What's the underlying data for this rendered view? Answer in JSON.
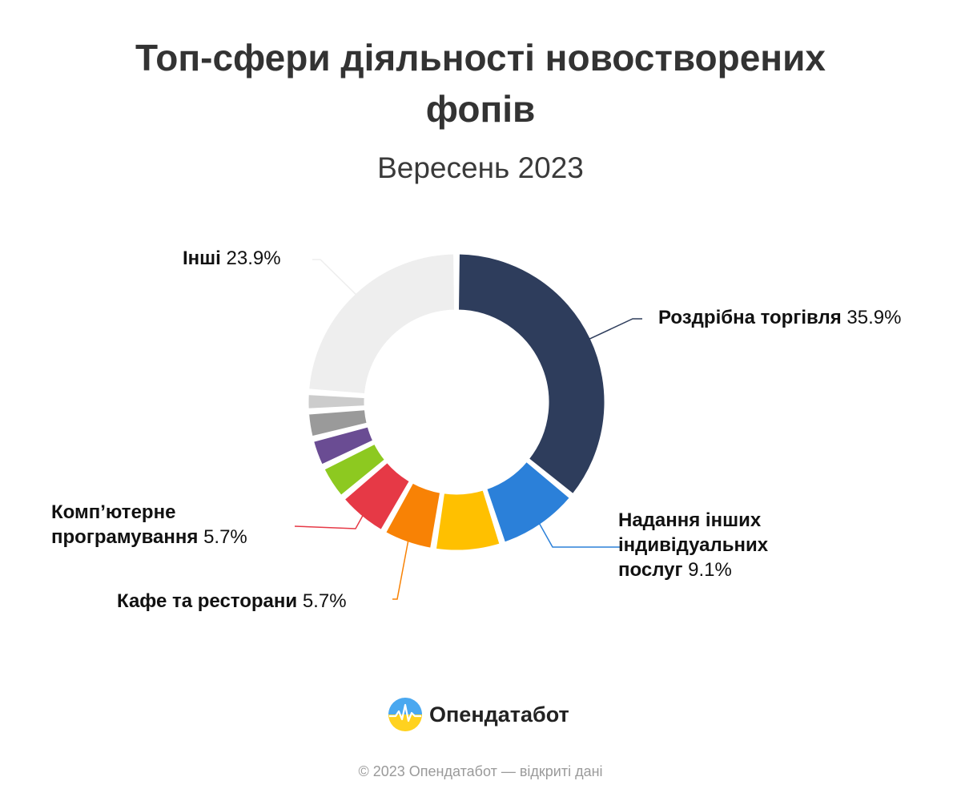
{
  "header": {
    "title": "Топ-сфери діяльності новостворених фопів",
    "subtitle": "Вересень 2023"
  },
  "chart_data": {
    "type": "pie",
    "donut": true,
    "slices": [
      {
        "name": "Роздрібна торгівля",
        "value": 35.9,
        "pct_label": "35.9%",
        "color": "#2e3d5c"
      },
      {
        "name": "Надання інших індивідуальних послуг",
        "value": 9.1,
        "pct_label": "9.1%",
        "color": "#2b80d9"
      },
      {
        "name": "",
        "value": 7.5,
        "pct_label": "",
        "color": "#ffc000"
      },
      {
        "name": "Кафе та ресторани",
        "value": 5.7,
        "pct_label": "5.7%",
        "color": "#f88205"
      },
      {
        "name": "Комп’ютерне програмування",
        "value": 5.7,
        "pct_label": "5.7%",
        "color": "#e63946"
      },
      {
        "name": "",
        "value": 3.9,
        "pct_label": "",
        "color": "#8dc920"
      },
      {
        "name": "",
        "value": 3.2,
        "pct_label": "",
        "color": "#6a4c93"
      },
      {
        "name": "",
        "value": 3.0,
        "pct_label": "",
        "color": "#9a9a9a"
      },
      {
        "name": "",
        "value": 2.1,
        "pct_label": "",
        "color": "#cccccc"
      },
      {
        "name": "Інші",
        "value": 23.9,
        "pct_label": "23.9%",
        "color": "#eeeeee"
      }
    ]
  },
  "labels": {
    "retail": {
      "name": "Роздрібна торгівля",
      "pct": "35.9%"
    },
    "services": {
      "name_line1": "Надання інших",
      "name_line2": "індивідуальних",
      "name_line3": "послуг",
      "pct": "9.1%"
    },
    "programming": {
      "name_line1": "Комп’ютерне",
      "name_line2": "програмування",
      "pct": "5.7%"
    },
    "cafe": {
      "name": "Кафе та ресторани",
      "pct": "5.7%"
    },
    "other": {
      "name": "Інші",
      "pct": "23.9%"
    }
  },
  "brand": {
    "name": "Опендатабот",
    "logo_colors": {
      "top": "#4aa8f0",
      "bottom": "#ffd21f"
    }
  },
  "footer": {
    "text": "© 2023 Опендатабот — відкриті дані"
  }
}
